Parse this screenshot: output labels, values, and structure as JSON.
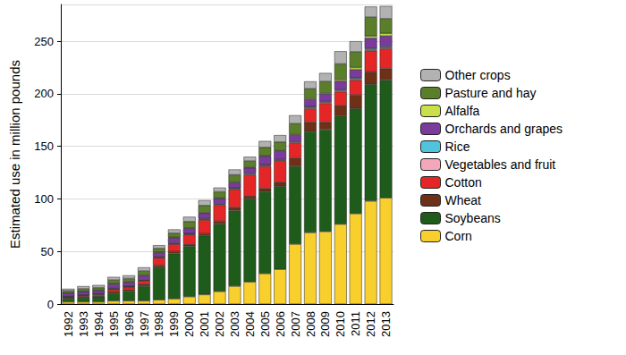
{
  "chart_data": {
    "type": "bar",
    "stacked": true,
    "y_label": "Estimated use in million pounds",
    "categories": [
      "1992",
      "1993",
      "1994",
      "1995",
      "1996",
      "1997",
      "1998",
      "1999",
      "2000",
      "2001",
      "2002",
      "2003",
      "2004",
      "2005",
      "2006",
      "2007",
      "2008",
      "2009",
      "2010",
      "2011",
      "2012",
      "2013"
    ],
    "ylim": [
      0,
      285
    ],
    "yticks": [
      0,
      50,
      100,
      150,
      200,
      250
    ],
    "grid": true,
    "legend": "right",
    "series": [
      {
        "name": "Corn",
        "color": "#f9cf2d",
        "values": [
          2,
          2,
          2,
          3,
          3,
          3,
          4,
          5,
          7,
          9,
          12,
          17,
          21,
          29,
          33,
          57,
          68,
          69,
          76,
          86,
          98,
          101
        ]
      },
      {
        "name": "Soybeans",
        "color": "#1f5c1b",
        "values": [
          3,
          4,
          5,
          7,
          9,
          14,
          31,
          43,
          48,
          56,
          64,
          72,
          79,
          78,
          79,
          74,
          96,
          97,
          103,
          100,
          111,
          112
        ]
      },
      {
        "name": "Wheat",
        "color": "#6e3118",
        "values": [
          1,
          1,
          1,
          2,
          2,
          2,
          2,
          2,
          2,
          2,
          3,
          3,
          3,
          3,
          4,
          8,
          9,
          7,
          10,
          13,
          12,
          11
        ]
      },
      {
        "name": "Cotton",
        "color": "#e52626",
        "values": [
          0.5,
          1,
          1,
          2,
          2,
          3,
          7,
          7,
          9,
          13,
          15,
          17,
          20,
          21,
          20,
          14,
          13,
          18,
          13,
          14,
          20,
          19
        ]
      },
      {
        "name": "Vegetables and fruit",
        "color": "#f4a7bb",
        "values": [
          0.5,
          0.5,
          0.5,
          0.5,
          0.5,
          0.5,
          0.5,
          0.5,
          0.5,
          0.7,
          0.7,
          0.8,
          0.8,
          0.8,
          0.8,
          1,
          1,
          1,
          1,
          1,
          1,
          1
        ]
      },
      {
        "name": "Rice",
        "color": "#4fc4dc",
        "values": [
          0.2,
          0.2,
          0.3,
          0.3,
          0.3,
          0.4,
          0.5,
          0.5,
          0.5,
          0.6,
          0.6,
          0.6,
          0.7,
          0.7,
          0.7,
          0.8,
          0.8,
          0.8,
          1,
          1,
          1,
          1
        ]
      },
      {
        "name": "Orchards and grapes",
        "color": "#7a3b9c",
        "values": [
          3,
          3,
          3,
          4,
          4,
          4,
          4,
          5,
          5,
          5,
          5,
          5,
          5,
          8,
          8,
          6,
          7,
          7,
          8,
          8,
          10,
          10
        ]
      },
      {
        "name": "Alfalfa",
        "color": "#c9e04b",
        "values": [
          0.3,
          0.3,
          0.3,
          0.5,
          0.5,
          0.5,
          0.5,
          0.5,
          0.5,
          0.5,
          0.5,
          0.6,
          0.6,
          0.6,
          0.7,
          0.8,
          1,
          1,
          1.5,
          2,
          2,
          2.5
        ]
      },
      {
        "name": "Pasture and hay",
        "color": "#5b7e2b",
        "values": [
          2,
          2.5,
          2.5,
          3.5,
          3,
          4,
          3.5,
          4,
          6,
          7,
          6,
          7,
          6,
          8,
          8,
          10,
          9,
          11,
          15,
          15,
          18,
          14
        ]
      },
      {
        "name": "Other crops",
        "color": "#b2b2b2",
        "values": [
          2,
          2.5,
          2.5,
          3,
          3,
          3.5,
          3,
          3.5,
          4.5,
          5,
          4,
          5,
          4,
          6,
          6.5,
          8,
          7,
          8,
          12,
          10,
          10,
          12
        ]
      }
    ]
  }
}
